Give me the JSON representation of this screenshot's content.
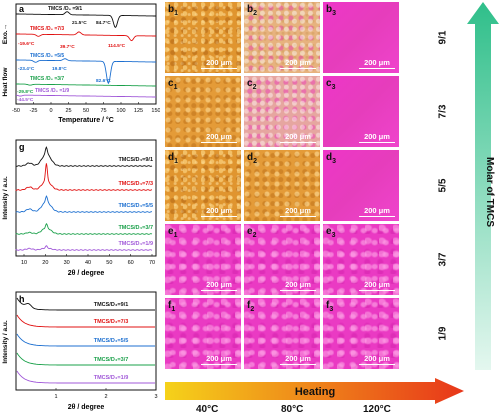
{
  "panel_a": {
    "letter": "a",
    "exo_label": "Exo.→",
    "ylabel": "Heat flow",
    "xlabel": "Temperature / °C",
    "xticks": [
      "-50",
      "-25",
      "0",
      "25",
      "50",
      "75",
      "100",
      "125",
      "150"
    ],
    "curves": [
      {
        "label": "TMCS /D₄ =9/1",
        "color": "#111111",
        "annotations": [
          "21.5°C",
          "84.7°C"
        ]
      },
      {
        "label": "TMCS /D₄ =7/3",
        "color": "#e01010",
        "annotations": [
          "-19.6°C",
          "39.7°C",
          "114.5°C"
        ]
      },
      {
        "label": "TMCS /D₄ =5/5",
        "color": "#1c6fd0",
        "annotations": [
          "-23.4°C",
          "19.8°C",
          "82.6°C"
        ]
      },
      {
        "label": "TMCS /D₄ =3/7",
        "color": "#1aa04a",
        "annotations": [
          "-29.8°C"
        ]
      },
      {
        "label": "TMCS /D₄ =1/9",
        "color": "#a058d8",
        "annotations": [
          "-44.5°C"
        ]
      }
    ]
  },
  "panel_g": {
    "letter": "g",
    "ylabel": "Intensity / a.u.",
    "xlabel": "2θ / degree",
    "xticks": [
      "10",
      "20",
      "30",
      "40",
      "50",
      "60",
      "70"
    ],
    "labels": [
      "TMCS/D₄=9/1",
      "TMCS/D₄=7/3",
      "TMCS/D₄=5/5",
      "TMCS/D₄=3/7",
      "TMCS/D₄=1/9"
    ]
  },
  "panel_h": {
    "letter": "h",
    "ylabel": "Intensity / a.u.",
    "xlabel": "2θ / degree",
    "xticks": [
      "1",
      "2",
      "3"
    ],
    "labels": [
      "TMCS/D₄=9/1",
      "TMCS/D₄=7/3",
      "TMCS/D₄=5/5",
      "TMCS/D₄=3/7",
      "TMCS/D₄=1/9"
    ]
  },
  "micrographs": {
    "scale_bar": "200 μm",
    "rows": [
      {
        "letter": "b",
        "ratio": "9/1"
      },
      {
        "letter": "c",
        "ratio": "7/3"
      },
      {
        "letter": "d",
        "ratio": "5/5"
      },
      {
        "letter": "e",
        "ratio": "3/7"
      },
      {
        "letter": "f",
        "ratio": "1/9"
      }
    ],
    "temperatures": [
      "40°C",
      "80°C",
      "120°C"
    ]
  },
  "arrows": {
    "heating_label": "Heating",
    "molar_label": "Molar of TMCS"
  },
  "colors": {
    "black": "#111111",
    "red": "#e01010",
    "blue": "#1c6fd0",
    "green": "#1aa04a",
    "purple": "#a058d8",
    "heating_start": "#f5d21a",
    "heating_end": "#e8361a",
    "molar_top": "#2fbf8a",
    "molar_bottom": "#dff5ec"
  }
}
